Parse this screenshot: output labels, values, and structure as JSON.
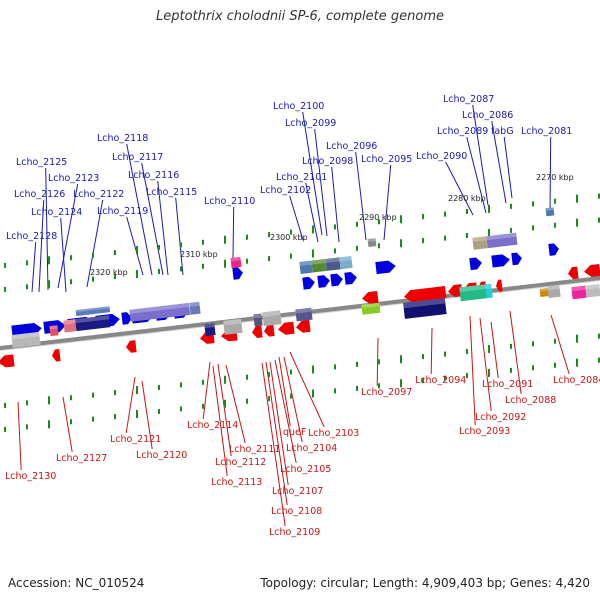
{
  "title": "Leptothrix cholodnii SP-6, complete genome",
  "footer": {
    "accession": "Accession: NC_010524",
    "summary": "Topology: circular; Length: 4,909,403 bp; Genes: 4,420"
  },
  "colors": {
    "forward": "#0000dd",
    "reverse": "#ee0000",
    "axis": "#888888",
    "tick": "#1a8a1a",
    "top_label": "#1a1ab0",
    "bottom_label": "#c81414"
  },
  "scale_labels": [
    {
      "text": "2320 kbp"
    },
    {
      "text": "2310 kbp"
    },
    {
      "text": "2300 kbp"
    },
    {
      "text": "2290 kbp"
    },
    {
      "text": "2280 kbp"
    },
    {
      "text": "2270 kbp"
    }
  ],
  "top_labels": [
    "Lcho_2100",
    "Lcho_2099",
    "Lcho_2087",
    "Lcho_2086",
    "Lcho_2089",
    "fabG",
    "Lcho_2081",
    "Lcho_2118",
    "Lcho_2096",
    "Lcho_2090",
    "Lcho_2117",
    "Lcho_2098",
    "Lcho_2095",
    "Lcho_2125",
    "Lcho_2116",
    "Lcho_2101",
    "Lcho_2123",
    "Lcho_2102",
    "Lcho_2126",
    "Lcho_2122",
    "Lcho_2115",
    "Lcho_2110",
    "Lcho_2124",
    "Lcho_2119",
    "Lcho_2128"
  ],
  "bottom_labels": [
    "Lcho_2097",
    "Lcho_2094",
    "Lcho_2084",
    "Lcho_2091",
    "Lcho_2088",
    "Lcho_2092",
    "Lcho_2093",
    "Lcho_2114",
    "Lcho_2103",
    "queF",
    "Lcho_2121",
    "Lcho_2111",
    "Lcho_2104",
    "Lcho_2120",
    "Lcho_2112",
    "Lcho_2105",
    "Lcho_2127",
    "Lcho_2130",
    "Lcho_2113",
    "Lcho_2107",
    "Lcho_2108",
    "Lcho_2109"
  ]
}
